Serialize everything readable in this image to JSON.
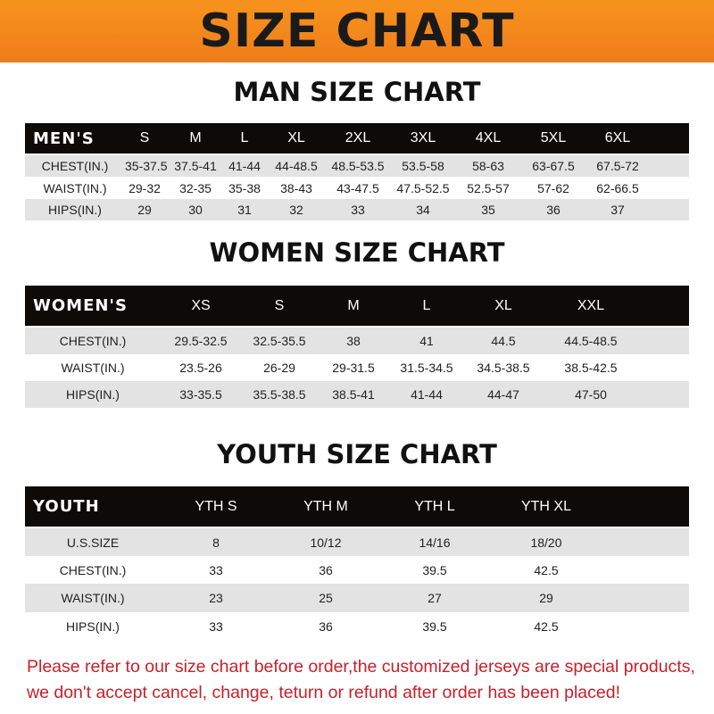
{
  "banner": {
    "title": "SIZE CHART",
    "color": "#f58220"
  },
  "men": {
    "title": "MAN SIZE CHART",
    "header": [
      "MEN'S",
      "S",
      "M",
      "L",
      "XL",
      "2XL",
      "3XL",
      "4XL",
      "5XL",
      "6XL"
    ],
    "rows": [
      [
        "CHEST(IN.)",
        "35-37.5",
        "37.5-41",
        "41-44",
        "44-48.5",
        "48.5-53.5",
        "53.5-58",
        "58-63",
        "63-67.5",
        "67.5-72"
      ],
      [
        "WAIST(IN.)",
        "29-32",
        "32-35",
        "35-38",
        "38-43",
        "43-47.5",
        "47.5-52.5",
        "52.5-57",
        "57-62",
        "62-66.5"
      ],
      [
        "HIPS(IN.)",
        "29",
        "30",
        "31",
        "32",
        "33",
        "34",
        "35",
        "36",
        "37"
      ]
    ]
  },
  "women": {
    "title": "WOMEN SIZE CHART",
    "header": [
      "WOMEN'S",
      "XS",
      "S",
      "M",
      "L",
      "XL",
      "XXL"
    ],
    "rows": [
      [
        "CHEST(IN.)",
        "29.5-32.5",
        "32.5-35.5",
        "38",
        "41",
        "44.5",
        "44.5-48.5"
      ],
      [
        "WAIST(IN.)",
        "23.5-26",
        "26-29",
        "29-31.5",
        "31.5-34.5",
        "34.5-38.5",
        "38.5-42.5"
      ],
      [
        "HIPS(IN.)",
        "33-35.5",
        "35.5-38.5",
        "38.5-41",
        "41-44",
        "44-47",
        "47-50"
      ]
    ]
  },
  "youth": {
    "title": "YOUTH SIZE CHART",
    "header": [
      "YOUTH",
      "YTH S",
      "YTH M",
      "YTH L",
      "YTH XL"
    ],
    "rows": [
      [
        "U.S.SIZE",
        "8",
        "10/12",
        "14/16",
        "18/20"
      ],
      [
        "CHEST(IN.)",
        "33",
        "36",
        "39.5",
        "42.5"
      ],
      [
        "WAIST(IN.)",
        "23",
        "25",
        "27",
        "29"
      ],
      [
        "HIPS(IN.)",
        "33",
        "36",
        "39.5",
        "42.5"
      ]
    ]
  },
  "note": {
    "line1": "Please refer to our size chart before order,the customized jerseys are special products,",
    "line2": "we don't accept cancel, change, teturn or refund after order has been placed!",
    "color": "#c8202a"
  }
}
